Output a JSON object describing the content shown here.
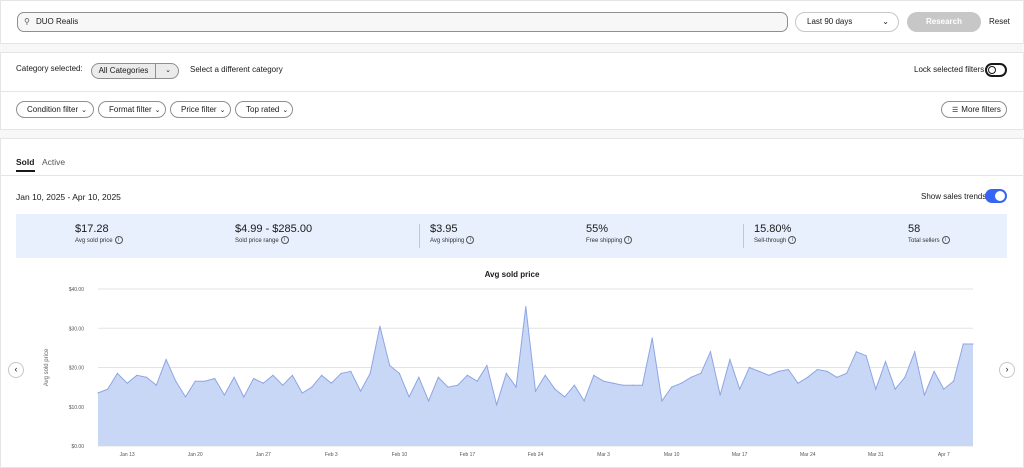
{
  "search": {
    "value": "DUO Realis",
    "icon": "search-icon"
  },
  "range_select": {
    "value": "Last 90 days"
  },
  "research_label": "Research",
  "reset_label": "Reset",
  "category": {
    "label": "Category selected:",
    "selected": "All Categories",
    "different": "Select a different category",
    "lock_label": "Lock selected filters"
  },
  "filters": {
    "condition": "Condition filter",
    "format": "Format filter",
    "price": "Price filter",
    "top": "Top rated",
    "more": "More filters"
  },
  "tabs": {
    "sold": "Sold",
    "active": "Active"
  },
  "date_range": "Jan 10, 2025 - Apr 10, 2025",
  "trend_label": "Show sales trends",
  "stats": [
    {
      "value": "$17.28",
      "label": "Avg sold price"
    },
    {
      "value": "$4.99 - $285.00",
      "label": "Sold price range"
    },
    {
      "value": "$3.95",
      "label": "Avg shipping"
    },
    {
      "value": "55%",
      "label": "Free shipping"
    },
    {
      "value": "15.80%",
      "label": "Sell-through"
    },
    {
      "value": "58",
      "label": "Total sellers"
    }
  ],
  "colors": {
    "accent": "#3665f3",
    "fill": "#c9d7f7",
    "line": "#8da5e3",
    "stats_bg": "#e8f0fd"
  },
  "chart_data": {
    "type": "area",
    "title": "Avg sold price",
    "ylabel": "Avg sold price",
    "ylim": [
      0,
      40
    ],
    "y_ticks": [
      "$0.00",
      "$10.00",
      "$20.00",
      "$30.00",
      "$40.00"
    ],
    "x_tick_labels": [
      "Jan 13",
      "Jan 20",
      "Jan 27",
      "Feb 3",
      "Feb 10",
      "Feb 17",
      "Feb 24",
      "Mar 3",
      "Mar 10",
      "Mar 17",
      "Mar 24",
      "Mar 31",
      "Apr 7"
    ],
    "x_start": "2025-01-10",
    "x_end": "2025-04-10",
    "values": [
      13.5,
      14.5,
      18.5,
      16.0,
      18.0,
      17.5,
      15.5,
      22.0,
      16.5,
      12.5,
      16.5,
      16.5,
      17.2,
      13.0,
      17.5,
      12.5,
      17.2,
      16.0,
      18.0,
      15.5,
      18.0,
      13.5,
      15.0,
      18.0,
      16.0,
      18.5,
      19.0,
      14.0,
      18.5,
      30.5,
      20.5,
      18.5,
      12.5,
      17.5,
      11.5,
      17.5,
      15.0,
      15.5,
      18.0,
      16.5,
      20.5,
      10.5,
      18.5,
      15.0,
      35.5,
      14.0,
      18.0,
      14.5,
      12.5,
      15.5,
      11.5,
      18.0,
      16.5,
      16.0,
      15.5,
      15.5,
      15.5,
      27.5,
      11.5,
      15.0,
      16.0,
      17.5,
      18.5,
      24.0,
      13.0,
      22.0,
      14.5,
      20.0,
      19.0,
      18.0,
      19.0,
      19.5,
      16.0,
      17.5,
      19.5,
      19.0,
      17.5,
      18.5,
      24.0,
      23.0,
      14.5,
      21.5,
      14.5,
      17.5,
      24.0,
      13.0,
      19.0,
      14.5,
      16.5,
      26.0,
      26.0
    ]
  }
}
